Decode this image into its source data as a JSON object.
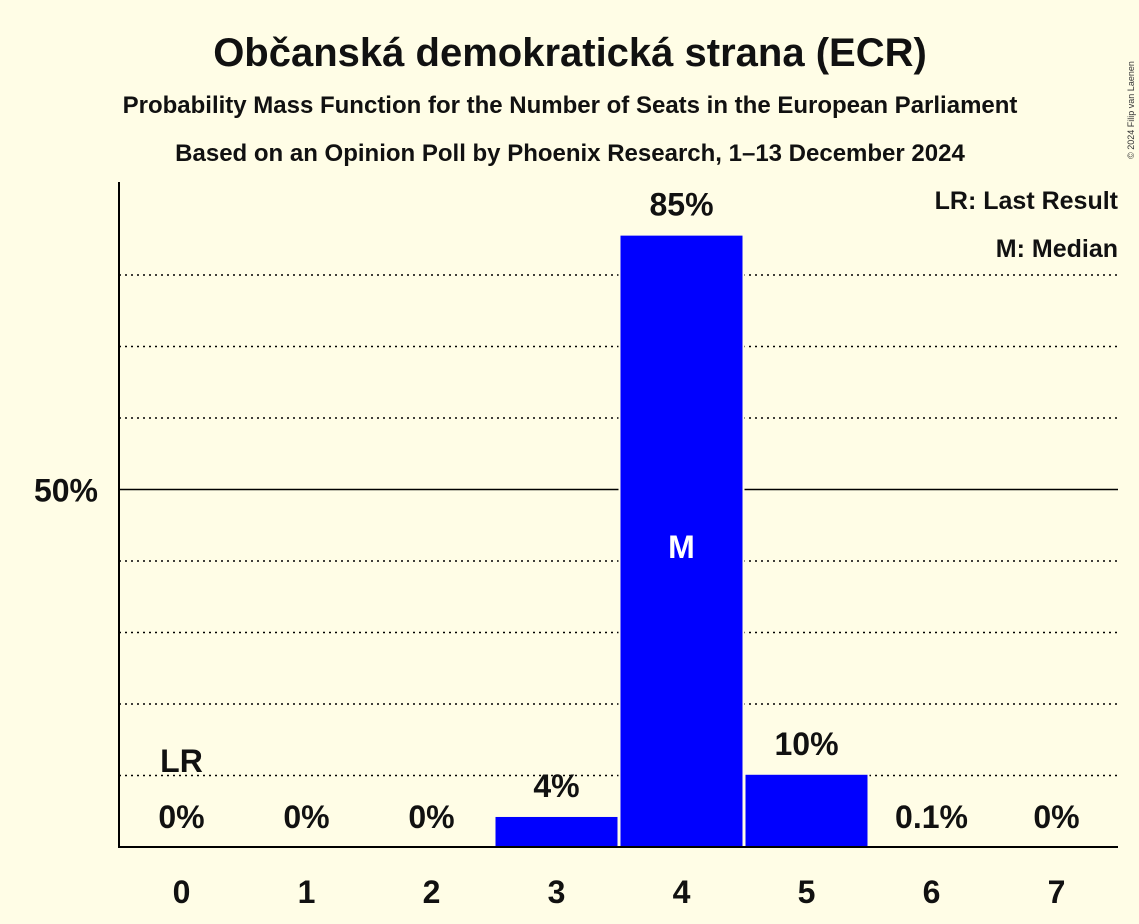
{
  "copyright": "© 2024 Filip van Laenen",
  "chart_data": {
    "type": "bar",
    "title": "Občanská demokratická strana (ECR)",
    "subtitle": "Probability Mass Function for the Number of Seats in the European Parliament",
    "subtitle2": "Based on an Opinion Poll by Phoenix Research, 1–13 December 2024",
    "xlabel": "",
    "ylabel": "",
    "categories": [
      "0",
      "1",
      "2",
      "3",
      "4",
      "5",
      "6",
      "7"
    ],
    "values": [
      0,
      0,
      0,
      4.2,
      85.5,
      10.1,
      0.1,
      0
    ],
    "value_labels": [
      "0%",
      "0%",
      "0%",
      "4%",
      "85%",
      "10%",
      "0.1%",
      "0%"
    ],
    "ylim": [
      0,
      93
    ],
    "y_tick_label": "50%",
    "y_tick_value": 50,
    "gridlines_dotted": [
      10,
      20,
      30,
      40,
      60,
      70,
      80
    ],
    "bar_color": "#0000FF",
    "median_label": "M",
    "median_index": 4,
    "last_result_label": "LR",
    "last_result_index": 0,
    "legend": [
      "LR: Last Result",
      "M: Median"
    ],
    "legend_position": "top-right"
  }
}
